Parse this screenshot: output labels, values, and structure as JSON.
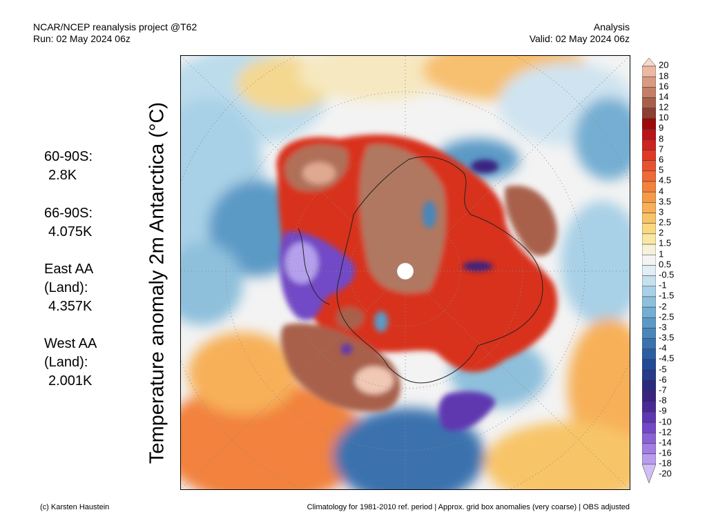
{
  "header": {
    "left_line1": "NCAR/NCEP reanalysis project @T62",
    "left_line2": "Run: 02 May 2024 06z",
    "right_line1": "Analysis",
    "right_line2": "Valid: 02 May 2024 06z"
  },
  "axis_label": "Temperature anomaly 2m Antarctica (°C)",
  "stats": [
    {
      "label": "60-90S:",
      "value": "2.8K"
    },
    {
      "label": "66-90S:",
      "value": "4.075K"
    },
    {
      "label": "East AA (Land):",
      "value": "4.357K"
    },
    {
      "label": "West AA (Land):",
      "value": "2.001K"
    }
  ],
  "colorbar": {
    "levels": [
      "20",
      "18",
      "16",
      "14",
      "12",
      "10",
      "9",
      "8",
      "7",
      "6",
      "5",
      "4.5",
      "4",
      "3.5",
      "3",
      "2.5",
      "2",
      "1.5",
      "1",
      "0.5",
      "-0.5",
      "-1",
      "-1.5",
      "-2",
      "-2.5",
      "-3",
      "-3.5",
      "-4",
      "-4.5",
      "-5",
      "-6",
      "-7",
      "-8",
      "-9",
      "-10",
      "-12",
      "-14",
      "-16",
      "-18",
      "-20"
    ],
    "colors": [
      "#f8d8c8",
      "#ecbaa4",
      "#d89a80",
      "#c47e66",
      "#a8604c",
      "#8c3f33",
      "#9c0a0a",
      "#b8141a",
      "#cc2422",
      "#de3a26",
      "#e85230",
      "#ee6a36",
      "#f2823c",
      "#f59a48",
      "#f7b058",
      "#f8c468",
      "#f8d880",
      "#f8e8a4",
      "#f6f2da",
      "#f4f4f4",
      "#e2eef6",
      "#c6e0ee",
      "#a8d0e6",
      "#8ec0dc",
      "#74aed2",
      "#5c9ac6",
      "#4a86ba",
      "#3a72ae",
      "#2c5ea2",
      "#244a96",
      "#283a8a",
      "#2a2a7e",
      "#3a2480",
      "#4c2a96",
      "#5e38b0",
      "#7248c6",
      "#8a62d6",
      "#a27ee2",
      "#ba9cec",
      "#d2bef4"
    ]
  },
  "footer": {
    "left": "(c) Karsten Haustein",
    "right": "Climatology for 1981-2010 ref. period | Approx. grid box anomalies (very coarse) | OBS adjusted"
  }
}
